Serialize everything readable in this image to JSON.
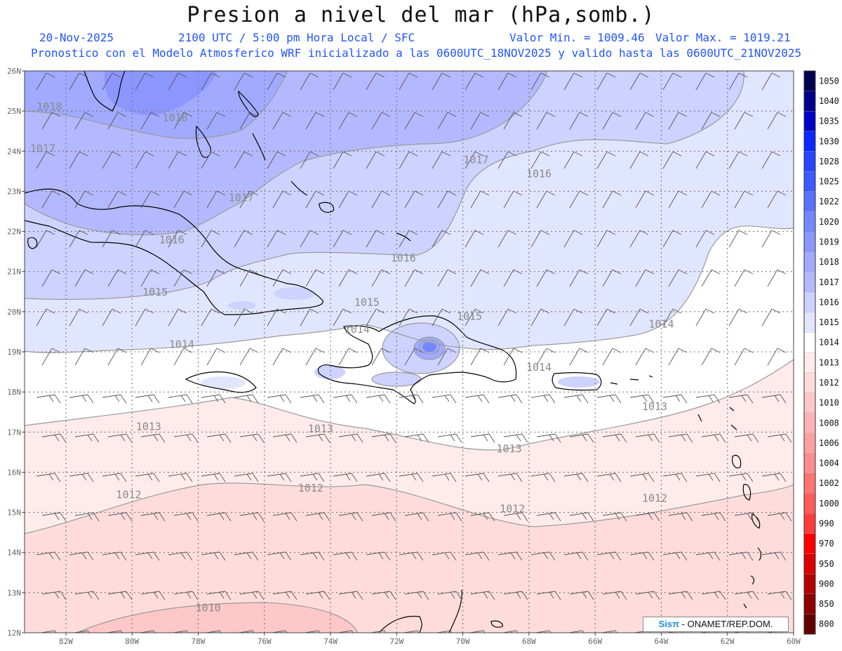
{
  "header": {
    "title": "Presion a nivel del mar (hPa,somb.)",
    "date": "20-Nov-2025",
    "time": "2100 UTC / 5:00 pm Hora Local / SFC",
    "vmin": "Valor Min. = 1009.46",
    "vmax": "Valor Max. = 1019.21",
    "info": "Pronostico con el Modelo Atmosferico WRF inicializado a las 0600UTC_18NOV2025 y valido hasta las  0600UTC_21NOV2025"
  },
  "credit": {
    "brand": "Sisπ",
    "text": " - ONAMET/REP.DOM."
  },
  "axes": {
    "lat_labels": [
      "26N",
      "25N",
      "24N",
      "23N",
      "22N",
      "21N",
      "20N",
      "19N",
      "18N",
      "17N",
      "16N",
      "15N",
      "14N",
      "13N",
      "12N"
    ],
    "lon_labels": [
      "82W",
      "80W",
      "78W",
      "76W",
      "74W",
      "72W",
      "70W",
      "68W",
      "66W",
      "64W",
      "62W",
      "60W"
    ]
  },
  "colorbar": {
    "labels": [
      "1050",
      "1040",
      "1035",
      "1030",
      "1028",
      "1025",
      "1022",
      "1020",
      "1019",
      "1018",
      "1017",
      "1016",
      "1015",
      "1014",
      "1013",
      "1012",
      "1010",
      "1008",
      "1006",
      "1004",
      "1002",
      "1000",
      "990",
      "970",
      "950",
      "900",
      "850",
      "800"
    ],
    "colors": [
      "#000050",
      "#00008c",
      "#0000c8",
      "#0a28ff",
      "#2846ff",
      "#3c5aff",
      "#5a73ff",
      "#7387ff",
      "#8c96ff",
      "#a0aaff",
      "#b4b9ff",
      "#cdd2ff",
      "#e1e6ff",
      "#ffffff",
      "#ffebeb",
      "#ffdcdc",
      "#ffc8c8",
      "#ffb4b4",
      "#ffa0a0",
      "#ff8c8c",
      "#ff7373",
      "#ff5a5a",
      "#ff3c3c",
      "#ff0000",
      "#dc0000",
      "#b40000",
      "#8c0000",
      "#640000"
    ]
  },
  "contour_labels": [
    {
      "text": "1018",
      "lon": -82.5,
      "lat": 25.02
    },
    {
      "text": "1018",
      "lon": -78.7,
      "lat": 24.75
    },
    {
      "text": "1017",
      "lon": -82.7,
      "lat": 23.98
    },
    {
      "text": "1017",
      "lon": -69.6,
      "lat": 23.7
    },
    {
      "text": "1016",
      "lon": -67.7,
      "lat": 23.35
    },
    {
      "text": "1017",
      "lon": -76.7,
      "lat": 22.75
    },
    {
      "text": "1016",
      "lon": -78.8,
      "lat": 21.7
    },
    {
      "text": "1016",
      "lon": -71.8,
      "lat": 21.25
    },
    {
      "text": "1015",
      "lon": -79.3,
      "lat": 20.4
    },
    {
      "text": "1015",
      "lon": -72.9,
      "lat": 20.15
    },
    {
      "text": "1015",
      "lon": -69.8,
      "lat": 19.8
    },
    {
      "text": "1014",
      "lon": -73.2,
      "lat": 19.47
    },
    {
      "text": "1014",
      "lon": -64.0,
      "lat": 19.6
    },
    {
      "text": "1014",
      "lon": -78.5,
      "lat": 19.1
    },
    {
      "text": "1014",
      "lon": -67.7,
      "lat": 18.53
    },
    {
      "text": "1013",
      "lon": -64.2,
      "lat": 17.55
    },
    {
      "text": "1013",
      "lon": -79.5,
      "lat": 17.05
    },
    {
      "text": "1013",
      "lon": -74.3,
      "lat": 17.0
    },
    {
      "text": "1013",
      "lon": -68.6,
      "lat": 16.5
    },
    {
      "text": "1012",
      "lon": -80.1,
      "lat": 15.35
    },
    {
      "text": "1012",
      "lon": -74.6,
      "lat": 15.52
    },
    {
      "text": "1012",
      "lon": -68.5,
      "lat": 15.0
    },
    {
      "text": "1012",
      "lon": -64.2,
      "lat": 15.26
    },
    {
      "text": "1010",
      "lon": -77.7,
      "lat": 12.53
    }
  ]
}
